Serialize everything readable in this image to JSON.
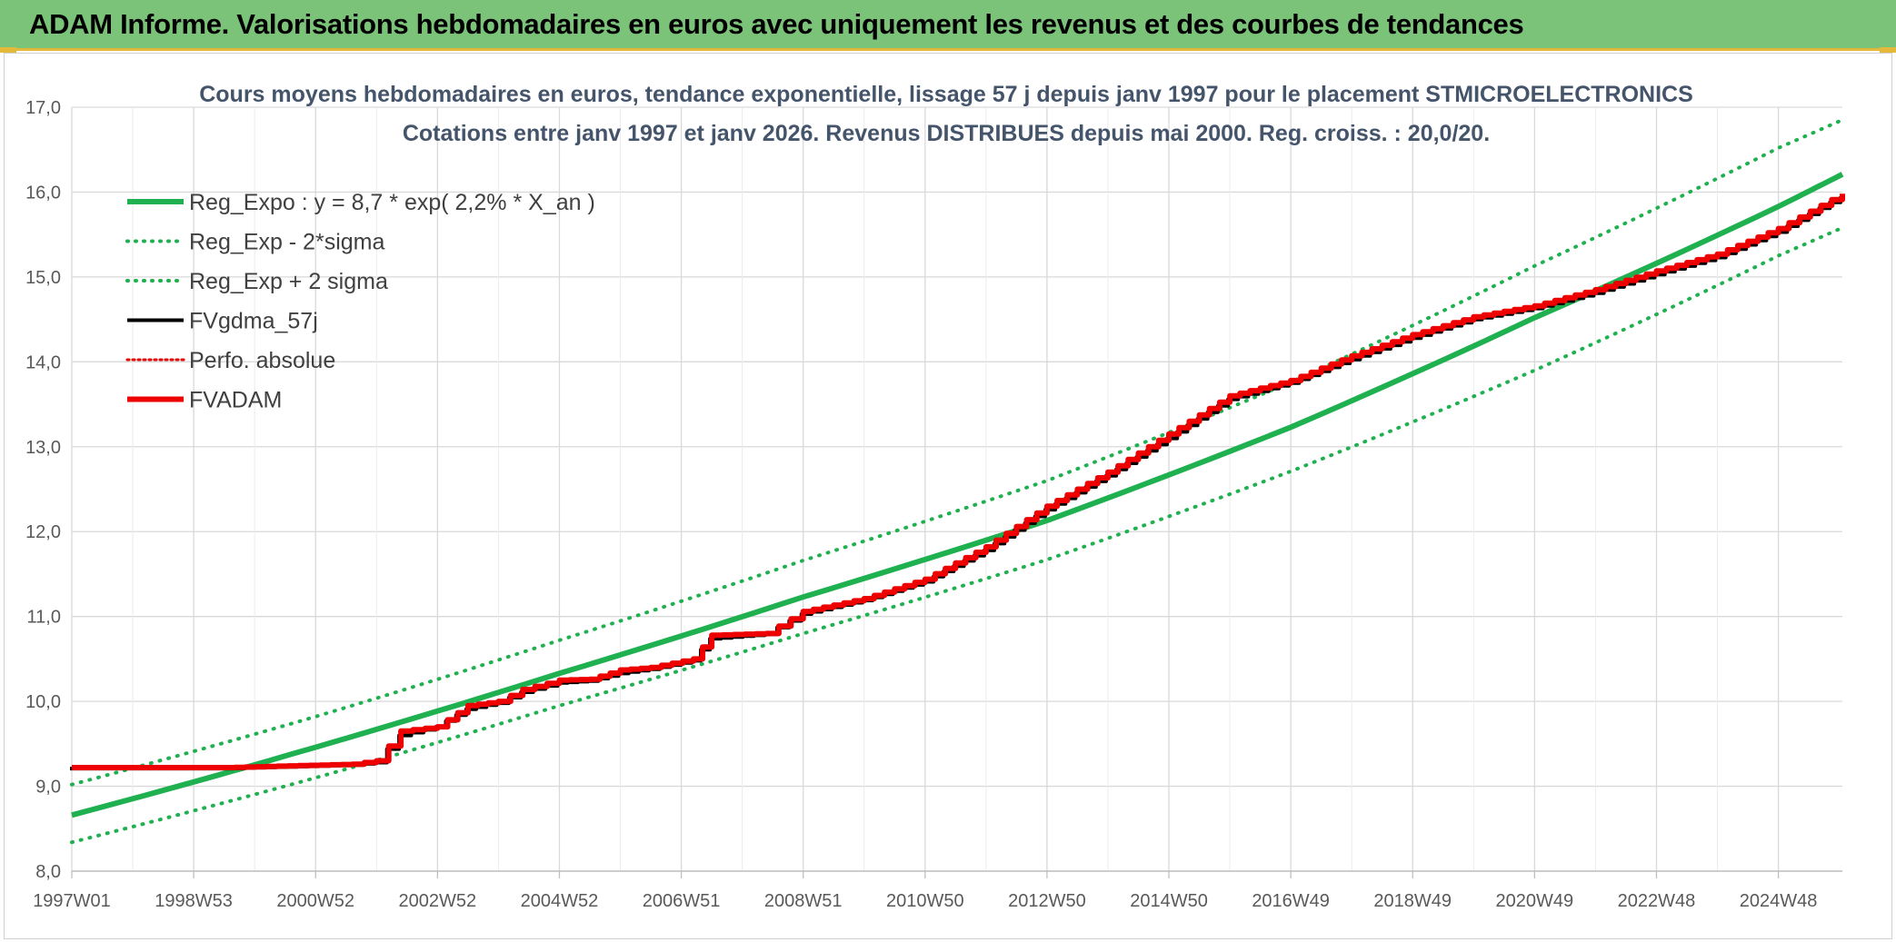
{
  "banner": {
    "title": "ADAM Informe. Valorisations hebdomadaires en euros avec uniquement les revenus et des courbes de tendances"
  },
  "colors": {
    "banner_bg": "#7cc37a",
    "accent_gold": "#e4b93a",
    "trend_green": "#1fb050",
    "fvadam_red": "#ee0000",
    "fvgdma_black": "#000000",
    "grid": "#d9d9d9",
    "title_text": "#44546a"
  },
  "chart_data": {
    "type": "line",
    "title_lines": [
      "Cours moyens hebdomadaires en euros, tendance exponentielle, lissage 57 j depuis janv 1997 pour le placement STMICROELECTRONICS",
      "Cotations entre janv 1997 et janv 2026. Revenus DISTRIBUES depuis mai 2000. Reg. croiss. : 20,0/20."
    ],
    "ylim": [
      8.0,
      17.0
    ],
    "y_ticks": [
      "8,0",
      "9,0",
      "10,0",
      "11,0",
      "12,0",
      "13,0",
      "14,0",
      "15,0",
      "16,0",
      "17,0"
    ],
    "xlim": [
      1997.0,
      2026.05
    ],
    "x_ticks": [
      {
        "label": "1997W01",
        "x": 1997.0
      },
      {
        "label": "1998W53",
        "x": 1999.0
      },
      {
        "label": "2000W52",
        "x": 2001.0
      },
      {
        "label": "2002W52",
        "x": 2003.0
      },
      {
        "label": "2004W52",
        "x": 2005.0
      },
      {
        "label": "2006W51",
        "x": 2007.0
      },
      {
        "label": "2008W51",
        "x": 2009.0
      },
      {
        "label": "2010W50",
        "x": 2011.0
      },
      {
        "label": "2012W50",
        "x": 2013.0
      },
      {
        "label": "2014W50",
        "x": 2015.0
      },
      {
        "label": "2016W49",
        "x": 2017.0
      },
      {
        "label": "2018W49",
        "x": 2019.0
      },
      {
        "label": "2020W49",
        "x": 2021.0
      },
      {
        "label": "2022W48",
        "x": 2023.0
      },
      {
        "label": "2024W48",
        "x": 2025.0
      }
    ],
    "grid": true,
    "legend_position": "top-left",
    "legend": [
      {
        "label": "Reg_Expo : y = 8,7 * exp( 2,2% *  X_an )",
        "color": "#1fb050",
        "style": "solid",
        "width": 6
      },
      {
        "label": "Reg_Exp - 2*sigma",
        "color": "#1fb050",
        "style": "dotted",
        "width": 4
      },
      {
        "label": "Reg_Exp + 2 sigma",
        "color": "#1fb050",
        "style": "dotted",
        "width": 4
      },
      {
        "label": "FVgdma_57j",
        "color": "#000000",
        "style": "solid",
        "width": 4
      },
      {
        "label": "Perfo. absolue",
        "color": "#ee0000",
        "style": "dotted",
        "width": 3
      },
      {
        "label": "FVADAM",
        "color": "#ee0000",
        "style": "solid",
        "width": 6
      }
    ],
    "series": [
      {
        "name": "Reg_Expo : y = 8,7 * exp( 2,2% *  X_an )",
        "x": [
          1997.0,
          2001.0,
          2005.0,
          2009.0,
          2013.0,
          2017.0,
          2021.0,
          2025.0,
          2026.05
        ],
        "y": [
          8.66,
          9.46,
          10.33,
          11.23,
          12.13,
          13.23,
          14.52,
          15.83,
          16.21
        ]
      },
      {
        "name": "Reg_Exp - 2*sigma",
        "x": [
          1997.0,
          2001.0,
          2005.0,
          2009.0,
          2013.0,
          2017.0,
          2021.0,
          2025.0,
          2026.05
        ],
        "y": [
          8.34,
          9.1,
          9.95,
          10.8,
          11.67,
          12.71,
          13.9,
          15.25,
          15.58
        ]
      },
      {
        "name": "Reg_Exp + 2 sigma",
        "x": [
          1997.0,
          2001.0,
          2005.0,
          2009.0,
          2013.0,
          2017.0,
          2021.0,
          2025.0,
          2026.05
        ],
        "y": [
          9.02,
          9.82,
          10.72,
          11.66,
          12.6,
          13.76,
          15.13,
          16.52,
          16.85
        ]
      },
      {
        "name": "FVgdma_57j",
        "x": [
          1997.0,
          1999.5,
          2001.6,
          2002.0,
          2002.4,
          2003.0,
          2003.5,
          2004.0,
          2004.4,
          2005.0,
          2005.5,
          2006.0,
          2006.5,
          2007.2,
          2007.5,
          2008.4,
          2009.0,
          2010.0,
          2011.0,
          2012.0,
          2013.0,
          2014.0,
          2015.0,
          2016.0,
          2017.0,
          2018.0,
          2019.0,
          2020.0,
          2021.0,
          2022.0,
          2023.0,
          2024.0,
          2025.0,
          2026.05
        ],
        "y": [
          9.23,
          9.23,
          9.27,
          9.3,
          9.62,
          9.72,
          9.93,
          10.0,
          10.13,
          10.24,
          10.26,
          10.35,
          10.4,
          10.5,
          10.76,
          10.81,
          11.05,
          11.21,
          11.43,
          11.8,
          12.28,
          12.68,
          13.12,
          13.58,
          13.77,
          14.05,
          14.3,
          14.52,
          14.65,
          14.83,
          15.05,
          15.25,
          15.55,
          15.97
        ]
      },
      {
        "name": "Perfo. absolue",
        "x": [
          1997.0,
          1999.5,
          2001.6,
          2002.0,
          2002.4,
          2003.0,
          2003.5,
          2004.0,
          2004.4,
          2005.0,
          2005.5,
          2006.0,
          2006.5,
          2007.2,
          2007.5,
          2008.4,
          2009.0,
          2010.0,
          2011.0,
          2012.0,
          2013.0,
          2014.0,
          2015.0,
          2016.0,
          2017.0,
          2018.0,
          2019.0,
          2020.0,
          2021.0,
          2022.0,
          2023.0,
          2024.0,
          2025.0,
          2026.05
        ],
        "y": [
          9.22,
          9.22,
          9.26,
          9.3,
          9.65,
          9.7,
          9.95,
          10.0,
          10.14,
          10.25,
          10.26,
          10.37,
          10.4,
          10.5,
          10.78,
          10.8,
          11.06,
          11.21,
          11.44,
          11.82,
          12.3,
          12.7,
          13.15,
          13.6,
          13.78,
          14.07,
          14.32,
          14.53,
          14.66,
          14.85,
          15.07,
          15.27,
          15.57,
          15.98
        ]
      },
      {
        "name": "FVADAM",
        "x": [
          1997.0,
          1999.5,
          2001.6,
          2002.0,
          2002.4,
          2003.0,
          2003.5,
          2004.0,
          2004.4,
          2005.0,
          2005.5,
          2006.0,
          2006.5,
          2007.2,
          2007.5,
          2008.4,
          2009.0,
          2010.0,
          2011.0,
          2012.0,
          2013.0,
          2014.0,
          2015.0,
          2016.0,
          2017.0,
          2018.0,
          2019.0,
          2020.0,
          2021.0,
          2022.0,
          2023.0,
          2024.0,
          2025.0,
          2026.05
        ],
        "y": [
          9.22,
          9.22,
          9.26,
          9.3,
          9.65,
          9.7,
          9.95,
          10.0,
          10.14,
          10.25,
          10.26,
          10.37,
          10.4,
          10.5,
          10.78,
          10.8,
          11.06,
          11.21,
          11.44,
          11.82,
          12.3,
          12.7,
          13.15,
          13.6,
          13.78,
          14.07,
          14.32,
          14.53,
          14.66,
          14.85,
          15.07,
          15.27,
          15.57,
          15.98
        ]
      }
    ]
  }
}
